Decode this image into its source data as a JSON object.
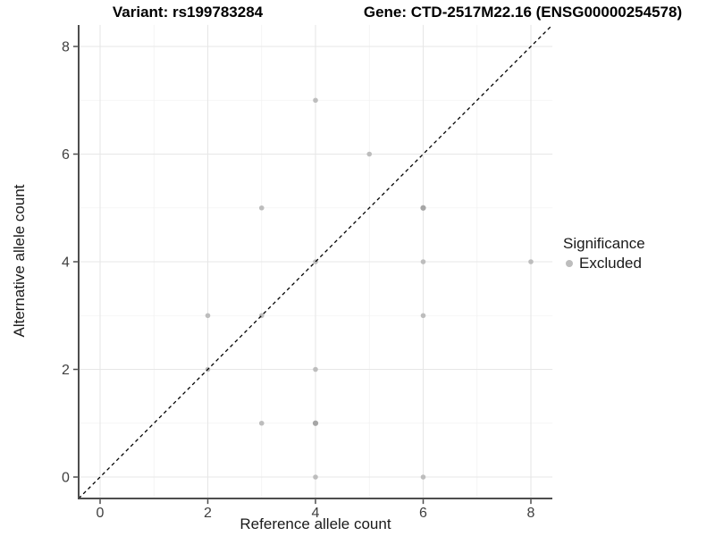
{
  "chart_data": {
    "type": "scatter",
    "title_left": "Variant: rs199783284",
    "title_right": "Gene: CTD-2517M22.16 (ENSG00000254578)",
    "xlabel": "Reference allele count",
    "ylabel": "Alternative allele count",
    "xlim": [
      -0.4,
      8.4
    ],
    "ylim": [
      -0.4,
      8.4
    ],
    "xticks": [
      0,
      2,
      4,
      6,
      8
    ],
    "yticks": [
      0,
      2,
      4,
      6,
      8
    ],
    "minor_ticks": [
      1,
      3,
      5,
      7
    ],
    "grid": true,
    "identity_line": {
      "style": "dashed",
      "color": "#000000",
      "from": -0.4,
      "to": 8.4
    },
    "legend": {
      "position": "right",
      "title": "Significance",
      "entries": [
        {
          "label": "Excluded",
          "color": "#BDBDBD"
        }
      ]
    },
    "series": [
      {
        "name": "Excluded",
        "color": "#BDBDBD",
        "points": [
          [
            2,
            2
          ],
          [
            2,
            3
          ],
          [
            3,
            1
          ],
          [
            3,
            3
          ],
          [
            3,
            5
          ],
          [
            4,
            0
          ],
          [
            4,
            1
          ],
          [
            4,
            2
          ],
          [
            4,
            4
          ],
          [
            4,
            7
          ],
          [
            5,
            6
          ],
          [
            6,
            0
          ],
          [
            6,
            3
          ],
          [
            6,
            4
          ],
          [
            6,
            5
          ],
          [
            8,
            4
          ]
        ],
        "darker_points": [
          [
            4,
            1
          ],
          [
            6,
            5
          ]
        ],
        "darker_color": "#A6A6A6"
      }
    ],
    "colors": {
      "grid_major": "#E7E7E7",
      "grid_minor": "#F2F2F2",
      "axis_line": "#4D4D4D",
      "tick_label": "#404040"
    }
  }
}
